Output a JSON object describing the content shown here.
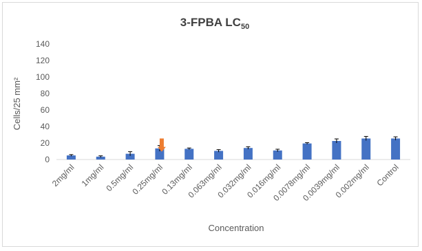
{
  "chart_data": {
    "type": "bar",
    "title": "3-FPBA LC",
    "title_subscript": "50",
    "xlabel": "Concentration",
    "ylabel": "Cells/25 mm²",
    "ylim": [
      0,
      140
    ],
    "yticks": [
      0,
      20,
      40,
      60,
      80,
      100,
      120,
      140
    ],
    "grid": false,
    "legend": "none",
    "categories": [
      "2mg/ml",
      "1mg/ml",
      "0.5mg/ml",
      "0.25mg/ml",
      "0.13mg/ml",
      "0.063mg/ml",
      "0.032mg/ml",
      "0.016mg/ml",
      "0.0078mg/ml",
      "0.0039mg/ml",
      "0.002mg/ml",
      "Control"
    ],
    "values": [
      5,
      3.5,
      7,
      13.5,
      13,
      10.5,
      14,
      11,
      19.5,
      22.5,
      25.5,
      25.5
    ],
    "errors": [
      1,
      1,
      2.5,
      3.5,
      1,
      1.5,
      1.5,
      1.5,
      1,
      2.5,
      2.5,
      2
    ],
    "bar_color": "#4472c4",
    "annotation": {
      "type": "arrow",
      "category": "0.25mg/ml",
      "color": "#ed7d31"
    }
  }
}
